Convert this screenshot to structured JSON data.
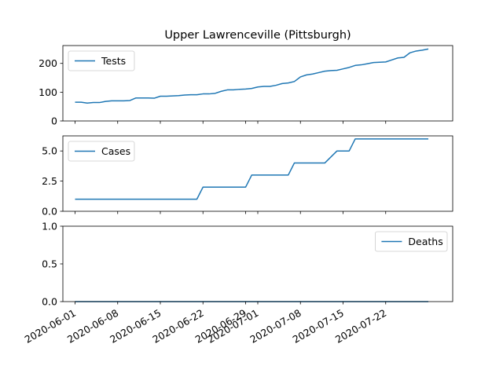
{
  "chart_data": {
    "type": "line",
    "title": "Upper Lawrenceville (Pittsburgh)",
    "x_tick_labels": [
      "2020-06-01",
      "2020-06-08",
      "2020-06-15",
      "2020-06-22",
      "2020-06-29",
      "2020-07-01",
      "2020-07-08",
      "2020-07-15",
      "2020-07-22"
    ],
    "x_range": [
      "2020-05-30",
      "2020-08-02"
    ],
    "color": "#1f77b4",
    "grid": false,
    "subplots": [
      {
        "name": "Tests",
        "legend_position": "upper-left",
        "ylim": [
          0,
          262
        ],
        "yticks": [
          0,
          100,
          200
        ],
        "ytick_labels": [
          "0",
          "100",
          "200"
        ],
        "x": [
          "2020-06-01",
          "2020-06-02",
          "2020-06-03",
          "2020-06-04",
          "2020-06-05",
          "2020-06-06",
          "2020-06-07",
          "2020-06-08",
          "2020-06-09",
          "2020-06-10",
          "2020-06-11",
          "2020-06-12",
          "2020-06-13",
          "2020-06-14",
          "2020-06-15",
          "2020-06-16",
          "2020-06-17",
          "2020-06-18",
          "2020-06-19",
          "2020-06-20",
          "2020-06-21",
          "2020-06-22",
          "2020-06-23",
          "2020-06-24",
          "2020-06-25",
          "2020-06-26",
          "2020-06-27",
          "2020-06-28",
          "2020-06-29",
          "2020-06-30",
          "2020-07-01",
          "2020-07-02",
          "2020-07-03",
          "2020-07-04",
          "2020-07-05",
          "2020-07-06",
          "2020-07-07",
          "2020-07-08",
          "2020-07-09",
          "2020-07-10",
          "2020-07-11",
          "2020-07-12",
          "2020-07-13",
          "2020-07-14",
          "2020-07-15",
          "2020-07-16",
          "2020-07-17",
          "2020-07-18",
          "2020-07-19",
          "2020-07-20",
          "2020-07-21",
          "2020-07-22",
          "2020-07-23",
          "2020-07-24",
          "2020-07-25",
          "2020-07-26",
          "2020-07-27",
          "2020-07-28",
          "2020-07-29"
        ],
        "values": [
          65,
          65,
          62,
          64,
          64,
          68,
          70,
          70,
          70,
          71,
          80,
          80,
          80,
          79,
          86,
          86,
          87,
          88,
          90,
          91,
          91,
          94,
          94,
          96,
          103,
          108,
          108,
          110,
          111,
          113,
          118,
          120,
          120,
          124,
          130,
          132,
          137,
          153,
          160,
          163,
          168,
          173,
          175,
          176,
          181,
          186,
          193,
          195,
          199,
          203,
          204,
          205,
          212,
          219,
          221,
          237,
          243,
          246,
          250
        ]
      },
      {
        "name": "Cases",
        "legend_position": "upper-left",
        "ylim": [
          0,
          6.25
        ],
        "yticks": [
          0,
          2.5,
          5
        ],
        "ytick_labels": [
          "0.0",
          "2.5",
          "5.0"
        ],
        "x": [
          "2020-06-01",
          "2020-06-21",
          "2020-06-22",
          "2020-06-29",
          "2020-06-30",
          "2020-07-06",
          "2020-07-07",
          "2020-07-12",
          "2020-07-14",
          "2020-07-16",
          "2020-07-17",
          "2020-07-29"
        ],
        "values": [
          1,
          1,
          2,
          2,
          3,
          3,
          4,
          4,
          5,
          5,
          6,
          6
        ]
      },
      {
        "name": "Deaths",
        "legend_position": "upper-right",
        "ylim": [
          0,
          1
        ],
        "yticks": [
          0,
          0.5,
          1
        ],
        "ytick_labels": [
          "0.0",
          "0.5",
          "1.0"
        ],
        "x": [
          "2020-06-01",
          "2020-07-29"
        ],
        "values": [
          0,
          0
        ]
      }
    ]
  }
}
